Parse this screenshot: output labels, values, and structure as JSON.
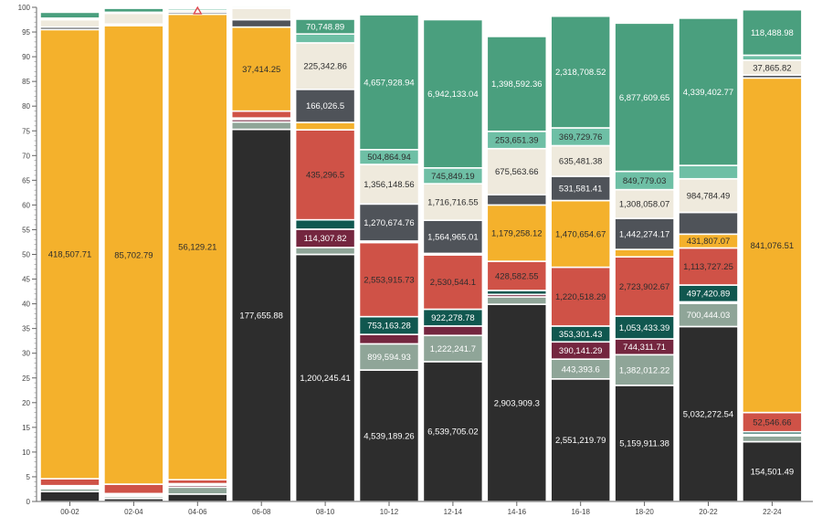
{
  "chart_data": {
    "type": "bar",
    "stacked": true,
    "normalized_percent": true,
    "ylim": [
      0,
      100
    ],
    "yticks": [
      0,
      5,
      10,
      15,
      20,
      25,
      30,
      35,
      40,
      45,
      50,
      55,
      60,
      65,
      70,
      75,
      80,
      85,
      90,
      95,
      100
    ],
    "grid": false,
    "categories": [
      "00-02",
      "02-04",
      "04-06",
      "06-08",
      "08-10",
      "10-12",
      "12-14",
      "14-16",
      "16-18",
      "18-20",
      "20-22",
      "22-24"
    ],
    "segment_order": [
      "black",
      "sage",
      "maroon",
      "darkteal",
      "red",
      "yellow",
      "slate",
      "cream",
      "mint",
      "green"
    ],
    "colors": {
      "black": "#2d2d2d",
      "sage": "#8fa598",
      "maroon": "#74263f",
      "darkteal": "#10574f",
      "red": "#cf5247",
      "yellow": "#f4b12c",
      "slate": "#4f5359",
      "cream": "#efeadd",
      "mint": "#6ebfa5",
      "green": "#4a9f7e"
    },
    "label_colors": {
      "black": "#ffffff",
      "sage": "#ffffff",
      "maroon": "#ffffff",
      "darkteal": "#ffffff",
      "red": "#2d2d2d",
      "yellow": "#2d2d2d",
      "slate": "#ffffff",
      "cream": "#2d2d2d",
      "mint": "#2d2d2d",
      "green": "#ffffff"
    },
    "segment_percents": [
      [
        2.0,
        0.6,
        0.3,
        0.3,
        1.4,
        90.9,
        0.5,
        1.5,
        0.3,
        1.2
      ],
      [
        0.6,
        0.4,
        0.3,
        0.3,
        1.9,
        92.8,
        0.3,
        2.2,
        0.2,
        0.8
      ],
      [
        1.5,
        1.4,
        0.4,
        0.3,
        0.8,
        94.2,
        0.4,
        0.4,
        0.4,
        0.2
      ],
      [
        75.3,
        1.5,
        0.5,
        0.3,
        1.4,
        17.0,
        1.5,
        2.3,
        0.2,
        0.3
      ],
      [
        50.0,
        1.4,
        3.7,
        1.9,
        18.2,
        1.5,
        6.7,
        9.4,
        1.8,
        3.0
      ],
      [
        26.6,
        5.3,
        1.9,
        3.6,
        15.0,
        0.3,
        7.5,
        8.0,
        3.0,
        27.3
      ],
      [
        28.3,
        5.3,
        1.9,
        3.4,
        11.0,
        0.3,
        6.7,
        7.4,
        3.2,
        30.0
      ],
      [
        39.9,
        1.5,
        0.5,
        0.8,
        5.9,
        11.4,
        2.1,
        9.3,
        3.5,
        19.2
      ],
      [
        24.8,
        4.0,
        3.5,
        3.2,
        11.9,
        13.5,
        4.9,
        6.2,
        3.6,
        22.6
      ],
      [
        23.5,
        6.2,
        3.2,
        4.6,
        12.0,
        1.5,
        6.3,
        5.8,
        3.7,
        30.0
      ],
      [
        35.4,
        4.7,
        0.3,
        3.4,
        7.5,
        2.8,
        4.4,
        6.8,
        2.7,
        29.8
      ],
      [
        12.1,
        1.2,
        0.3,
        0.5,
        3.9,
        67.7,
        0.6,
        3.0,
        1.0,
        9.2
      ]
    ],
    "segment_labels": [
      [
        null,
        null,
        null,
        null,
        null,
        "418,507.71",
        null,
        null,
        null,
        null
      ],
      [
        null,
        null,
        null,
        null,
        null,
        "85,702.79",
        null,
        null,
        null,
        null
      ],
      [
        null,
        null,
        null,
        null,
        null,
        "56,129.21",
        null,
        null,
        null,
        null
      ],
      [
        "177,655.88",
        null,
        null,
        null,
        null,
        "37,414.25",
        null,
        null,
        null,
        null
      ],
      [
        "1,200,245.41",
        null,
        "114,307.82",
        null,
        "435,296.5",
        null,
        "166,026.5",
        "225,342.86",
        null,
        "70,748.89"
      ],
      [
        "4,539,189.26",
        "899,594.93",
        null,
        "753,163.28",
        "2,553,915.73",
        null,
        "1,270,674.76",
        "1,356,148.56",
        "504,864.94",
        "4,657,928.94"
      ],
      [
        "6,539,705.02",
        "1,222,241.7",
        null,
        "922,278.78",
        "2,530,544.1",
        null,
        "1,564,965.01",
        "1,716,716.55",
        "745,849.19",
        "6,942,133.04"
      ],
      [
        "2,903,909.3",
        null,
        null,
        null,
        "428,582.55",
        "1,179,258.12",
        null,
        "675,563.66",
        "253,651.39",
        "1,398,592.36"
      ],
      [
        "2,551,219.79",
        "443,393.6",
        "390,141.29",
        "353,301.43",
        "1,220,518.29",
        "1,470,654.67",
        "531,581.41",
        "635,481.38",
        "369,729.76",
        "2,318,708.52"
      ],
      [
        "5,159,911.38",
        "1,382,012.22",
        "744,311.71",
        "1,053,433.39",
        "2,723,902.67",
        null,
        "1,442,274.17",
        "1,308,058.07",
        "849,779.03",
        "6,877,609.65"
      ],
      [
        "5,032,272.54",
        "700,444.03",
        null,
        "497,420.89",
        "1,113,727.25",
        "431,807.07",
        null,
        "984,784.49",
        null,
        "4,339,402.77"
      ],
      [
        "154,501.49",
        null,
        null,
        null,
        "52,546.66",
        "841,076.51",
        null,
        "37,865.82",
        null,
        "118,488.98"
      ]
    ],
    "marker": {
      "category": "04-06",
      "shape": "triangle",
      "value": 100,
      "color": "#e0434b"
    }
  }
}
